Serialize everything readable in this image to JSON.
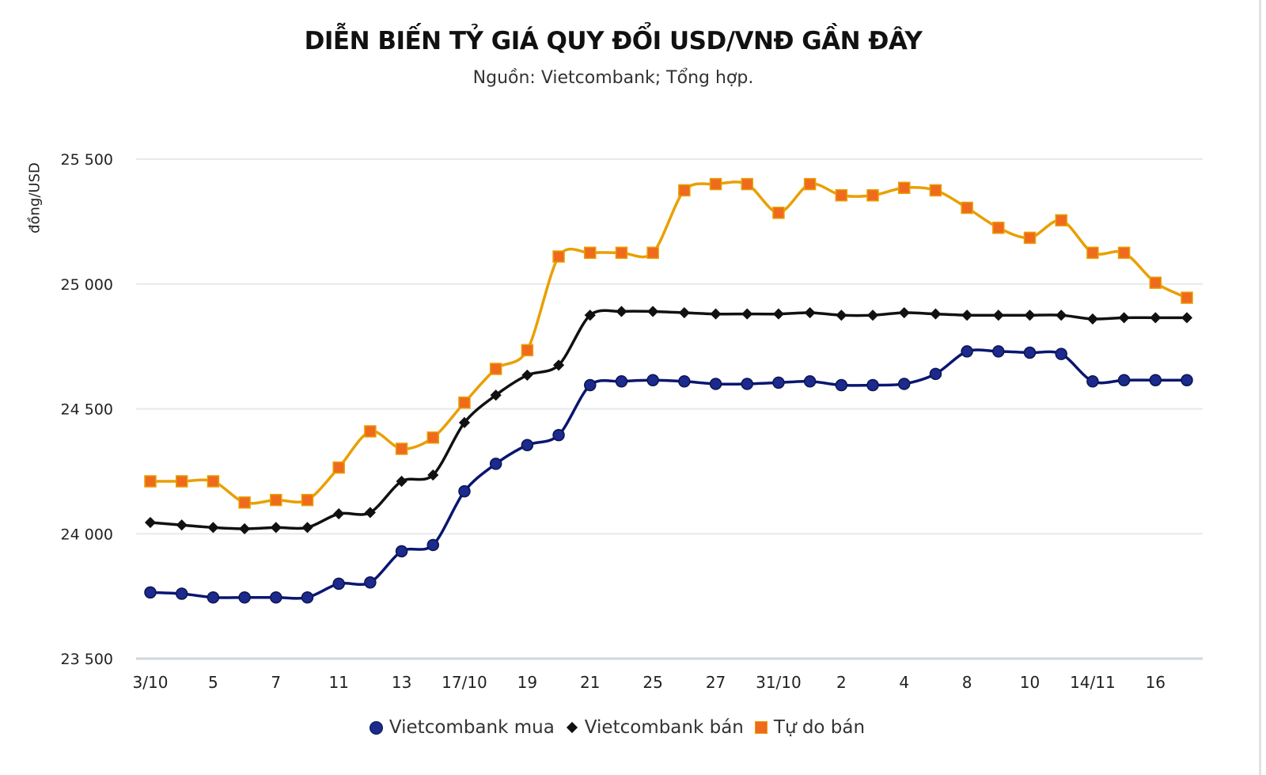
{
  "header": {
    "title": "DIỄN BIẾN TỶ GIÁ QUY ĐỔI USD/VNĐ GẦN ĐÂY",
    "subtitle": "Nguồn: Vietcombank; Tổng hợp."
  },
  "legend": [
    {
      "label": "Vietcombank mua",
      "marker": "circle",
      "color": "#1b2a8c"
    },
    {
      "label": "Vietcombank bán",
      "marker": "diamond",
      "color": "#111111"
    },
    {
      "label": "Tự do bán",
      "marker": "square",
      "color": "#f06a1e"
    }
  ],
  "chart_data": {
    "type": "line",
    "title": "DIỄN BIẾN TỶ GIÁ QUY ĐỔI USD/VNĐ GẦN ĐÂY",
    "subtitle": "Nguồn: Vietcombank; Tổng hợp.",
    "xlabel": "",
    "ylabel": "đồng/USD",
    "ylim": [
      23500,
      25500
    ],
    "yticks": [
      23500,
      24000,
      24500,
      25000,
      25500
    ],
    "ytick_labels": [
      "23 500",
      "24 000",
      "24 500",
      "25 000",
      "25 500"
    ],
    "grid": true,
    "legend_position": "bottom",
    "x_count": 34,
    "xtick_labels": [
      {
        "index": 0,
        "label": "3/10"
      },
      {
        "index": 2,
        "label": "5"
      },
      {
        "index": 4,
        "label": "7"
      },
      {
        "index": 6,
        "label": "11"
      },
      {
        "index": 8,
        "label": "13"
      },
      {
        "index": 10,
        "label": "17/10"
      },
      {
        "index": 12,
        "label": "19"
      },
      {
        "index": 14,
        "label": "21"
      },
      {
        "index": 16,
        "label": "25"
      },
      {
        "index": 18,
        "label": "27"
      },
      {
        "index": 20,
        "label": "31/10"
      },
      {
        "index": 22,
        "label": "2"
      },
      {
        "index": 24,
        "label": "4"
      },
      {
        "index": 26,
        "label": "8"
      },
      {
        "index": 28,
        "label": "10"
      },
      {
        "index": 30,
        "label": "14/11"
      },
      {
        "index": 32,
        "label": "16"
      }
    ],
    "series": [
      {
        "name": "Vietcombank mua",
        "color": "#1b2a8c",
        "line_color": "#0a1670",
        "marker": "circle",
        "values": [
          23765,
          23760,
          23745,
          23745,
          23745,
          23745,
          23800,
          23805,
          23930,
          23955,
          24170,
          24280,
          24355,
          24395,
          24595,
          24610,
          24615,
          24610,
          24600,
          24600,
          24605,
          24610,
          24595,
          24595,
          24600,
          24640,
          24730,
          24730,
          24725,
          24720,
          24610,
          24615,
          24615,
          24615
        ]
      },
      {
        "name": "Vietcombank bán",
        "color": "#111111",
        "line_color": "#111111",
        "marker": "diamond",
        "values": [
          24045,
          24035,
          24025,
          24020,
          24025,
          24025,
          24080,
          24085,
          24210,
          24235,
          24445,
          24555,
          24635,
          24675,
          24875,
          24890,
          24890,
          24885,
          24880,
          24880,
          24880,
          24885,
          24875,
          24875,
          24885,
          24880,
          24875,
          24875,
          24875,
          24875,
          24860,
          24865,
          24865,
          24865
        ]
      },
      {
        "name": "Tự do bán",
        "color": "#f06a1e",
        "line_color": "#e8a000",
        "marker": "square",
        "values": [
          24210,
          24210,
          24210,
          24125,
          24135,
          24135,
          24265,
          24410,
          24340,
          24385,
          24525,
          24660,
          24735,
          25110,
          25125,
          25125,
          25125,
          25375,
          25400,
          25400,
          25285,
          25400,
          25355,
          25355,
          25385,
          25375,
          25305,
          25225,
          25185,
          25255,
          25125,
          25125,
          25005,
          24945
        ]
      }
    ]
  }
}
